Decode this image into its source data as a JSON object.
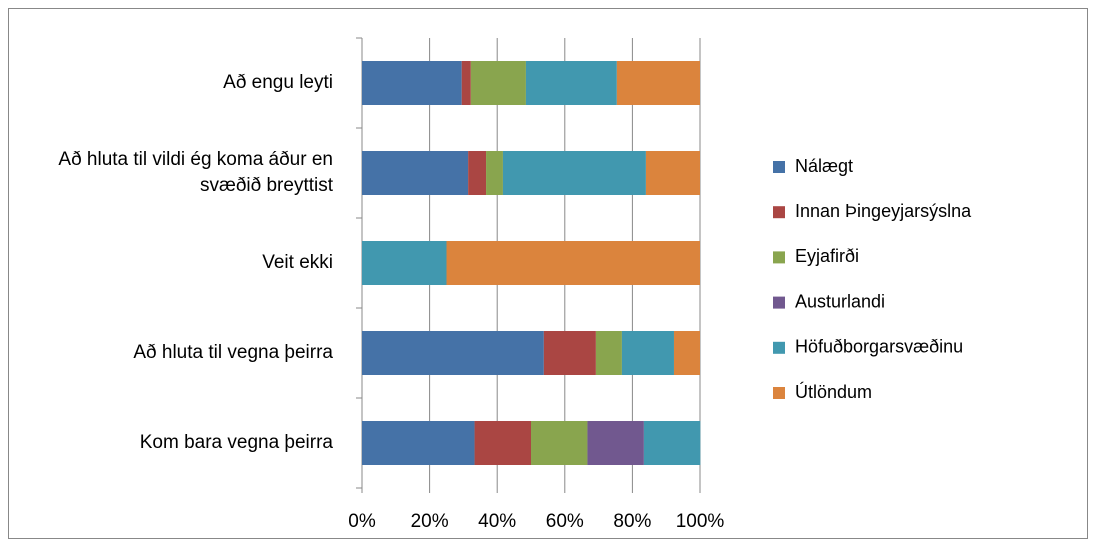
{
  "chart_data": {
    "type": "stacked-bar-horizontal",
    "categories": [
      "Að engu leyti",
      "Að hluta til vildi ég koma áður en svæðið breyttist",
      "Veit ekki",
      "Að hluta til vegna þeirra",
      "Kom bara vegna þeirra"
    ],
    "series": [
      {
        "name": "Nálægt",
        "color": "#4572a7",
        "values": [
          29.5,
          31.4,
          0,
          53.8,
          33.3
        ]
      },
      {
        "name": "Innan Þingeyjarsýslna",
        "color": "#aa4643",
        "values": [
          2.7,
          5.3,
          0,
          15.4,
          16.7
        ]
      },
      {
        "name": "Eyjafirði",
        "color": "#89a54e",
        "values": [
          16.3,
          5.0,
          0,
          7.7,
          16.7
        ]
      },
      {
        "name": "Austurlandi",
        "color": "#71588f",
        "values": [
          0,
          0,
          0,
          0,
          16.7
        ]
      },
      {
        "name": "Höfuðborgarsvæðinu",
        "color": "#4198af",
        "values": [
          26.9,
          42.3,
          25,
          15.4,
          16.7
        ]
      },
      {
        "name": "Útlöndum",
        "color": "#db843d",
        "values": [
          24.6,
          16.0,
          75,
          7.7,
          0
        ]
      }
    ],
    "xlim": [
      0,
      100
    ],
    "xticks": [
      {
        "value": 0,
        "label": "0%"
      },
      {
        "value": 20,
        "label": "20%"
      },
      {
        "value": 40,
        "label": "40%"
      },
      {
        "value": 60,
        "label": "60%"
      },
      {
        "value": 80,
        "label": "80%"
      },
      {
        "value": 100,
        "label": "100%"
      }
    ],
    "grid": true,
    "legend": "right"
  }
}
